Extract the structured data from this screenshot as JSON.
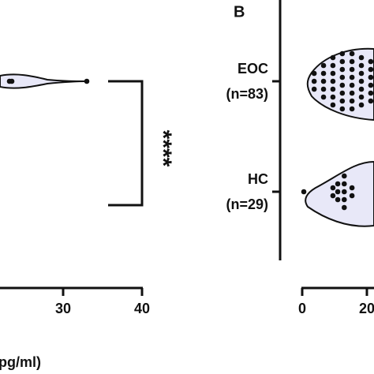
{
  "chart_data": [
    {
      "type": "violin",
      "xlim": [
        22,
        40
      ],
      "xticks": [
        30,
        40
      ],
      "xlabel": "(pg/ml)",
      "annotation": "****",
      "values": [
        23.2,
        23.5,
        33.0
      ]
    },
    {
      "type": "violin",
      "title": "B",
      "xlim": [
        0,
        22.2
      ],
      "xticks": [
        0,
        20
      ],
      "categories": [
        "EOC",
        "HC"
      ],
      "sublabels": [
        "(n=83)",
        "(n=29)"
      ],
      "series": [
        {
          "values": [
            3.7,
            3.7,
            3.7,
            6.6,
            6.6,
            6.6,
            6.6,
            6.6,
            9.5,
            9.5,
            9.5,
            9.5,
            9.5,
            9.5,
            9.5,
            12.4,
            12.4,
            12.4,
            12.4,
            12.4,
            12.4,
            12.4,
            12.4,
            15.4,
            15.4,
            15.4,
            15.4,
            15.4,
            15.4,
            15.4,
            15.4,
            18.3,
            18.3,
            18.3,
            18.3,
            18.3,
            18.3,
            18.3,
            21.2,
            21.2,
            21.2,
            21.2,
            21.2,
            21.2
          ]
        },
        {
          "values": [
            0.5,
            9.5,
            9.5,
            11,
            11,
            11,
            13,
            13,
            13,
            13,
            13,
            15.4,
            15.4
          ]
        }
      ]
    }
  ]
}
